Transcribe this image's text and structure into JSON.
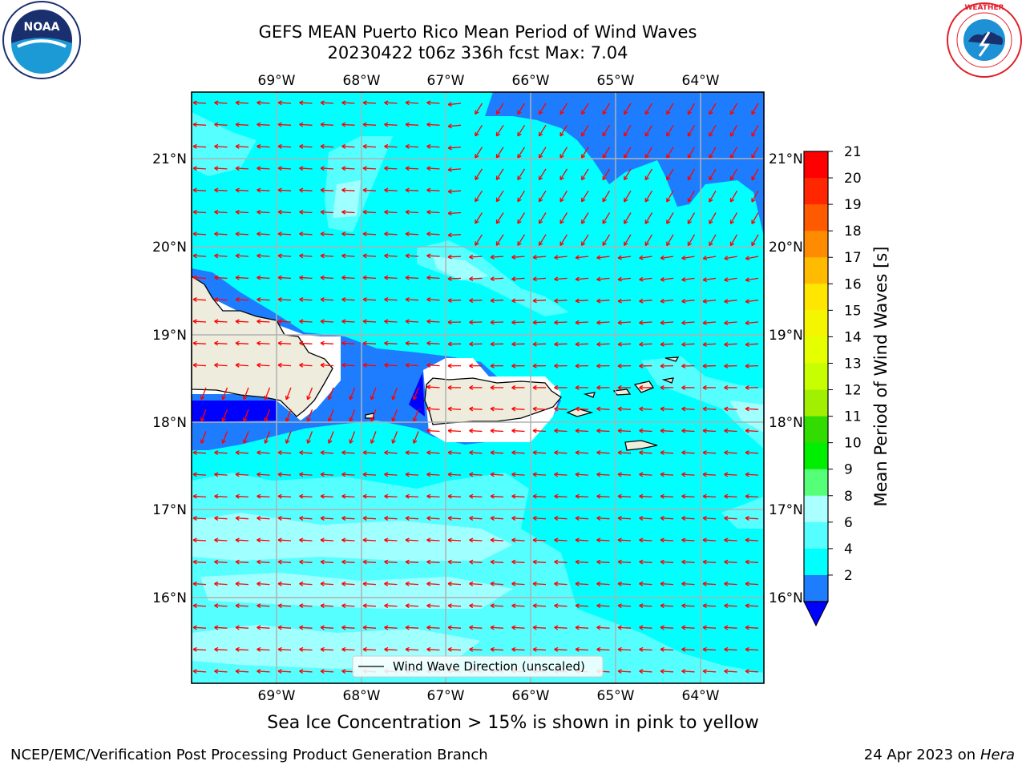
{
  "header": {
    "title_line1": "GEFS MEAN Puerto Rico Mean Period of Wind Waves",
    "title_line2": "20230422 t06z 336h fcst   Max: 7.04"
  },
  "logos": {
    "left": {
      "name": "noaa-logo",
      "text": "NOAA",
      "ring_text": "NATIONAL OCEANIC AND ATMOSPHERIC ADMINISTRATION · U.S. DEPARTMENT OF COMMERCE"
    },
    "right": {
      "name": "nws-logo",
      "ring_text": "NATIONAL WEATHER SERVICE"
    }
  },
  "map": {
    "lon_labels": [
      "69°W",
      "68°W",
      "67°W",
      "66°W",
      "65°W",
      "64°W"
    ],
    "lat_labels": [
      "21°N",
      "20°N",
      "19°N",
      "18°N",
      "17°N",
      "16°N"
    ],
    "legend_label": "Wind Wave Direction (unscaled)",
    "colors": {
      "land": "#eeecdc",
      "band_0_2": "#0000ff",
      "band_2_4": "#1e7dff",
      "band_4_6": "#00ffff",
      "band_6_8": "#55ffff",
      "band_8_9": "#a0ffff",
      "arrows": "#ff0000"
    }
  },
  "colorbar": {
    "label": "Mean Period of Wind Waves [s]",
    "ticks": [
      "21",
      "20",
      "19",
      "18",
      "17",
      "16",
      "15",
      "14",
      "13",
      "12",
      "11",
      "10",
      "9",
      "8",
      "6",
      "4",
      "2"
    ],
    "colors": [
      "#ff0000",
      "#ff2600",
      "#ff5a00",
      "#ff8c00",
      "#ffbb00",
      "#ffe600",
      "#f5f500",
      "#e6ff00",
      "#c8ff00",
      "#a0f000",
      "#32dc00",
      "#00ee00",
      "#55ff77",
      "#aaffff",
      "#55ffff",
      "#00ffff",
      "#1e7dff"
    ],
    "extend_color": "#0000ff"
  },
  "footer": {
    "sea_ice_note": "Sea Ice Concentration > 15% is shown in pink to yellow",
    "credit": "NCEP/EMC/Verification Post Processing Product Generation Branch",
    "date": "24 Apr 2023 on",
    "host": "Hera"
  }
}
